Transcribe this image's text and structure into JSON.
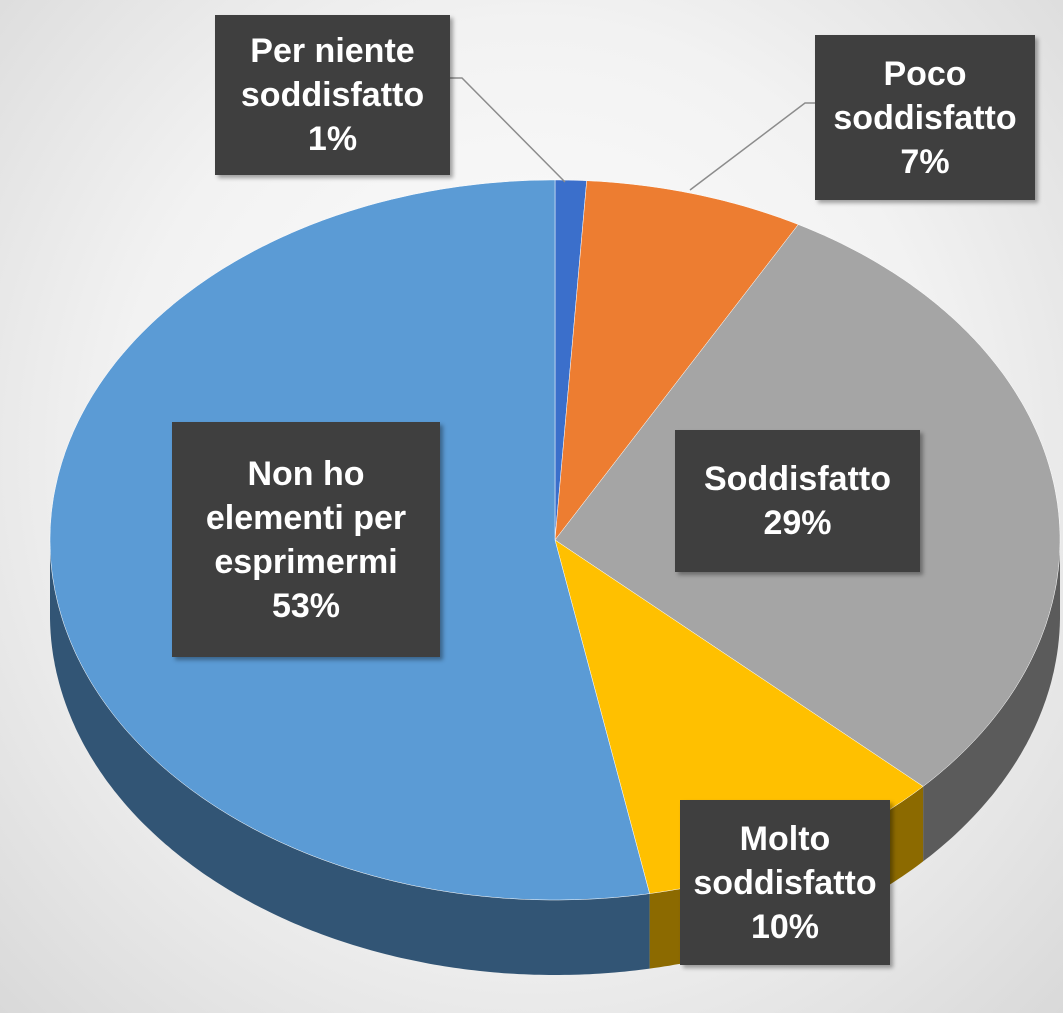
{
  "chart_data": {
    "type": "pie",
    "categories": [
      "Per niente soddisfatto",
      "Poco soddisfatto",
      "Soddisfatto",
      "Molto soddisfatto",
      "Non ho elementi per esprimermi"
    ],
    "values": [
      1,
      7,
      29,
      10,
      53
    ],
    "value_labels": [
      "1%",
      "7%",
      "29%",
      "10%",
      "53%"
    ],
    "colors": [
      "#3b6fcb",
      "#ed7d31",
      "#a5a5a5",
      "#ffc000",
      "#5b9bd5"
    ]
  }
}
